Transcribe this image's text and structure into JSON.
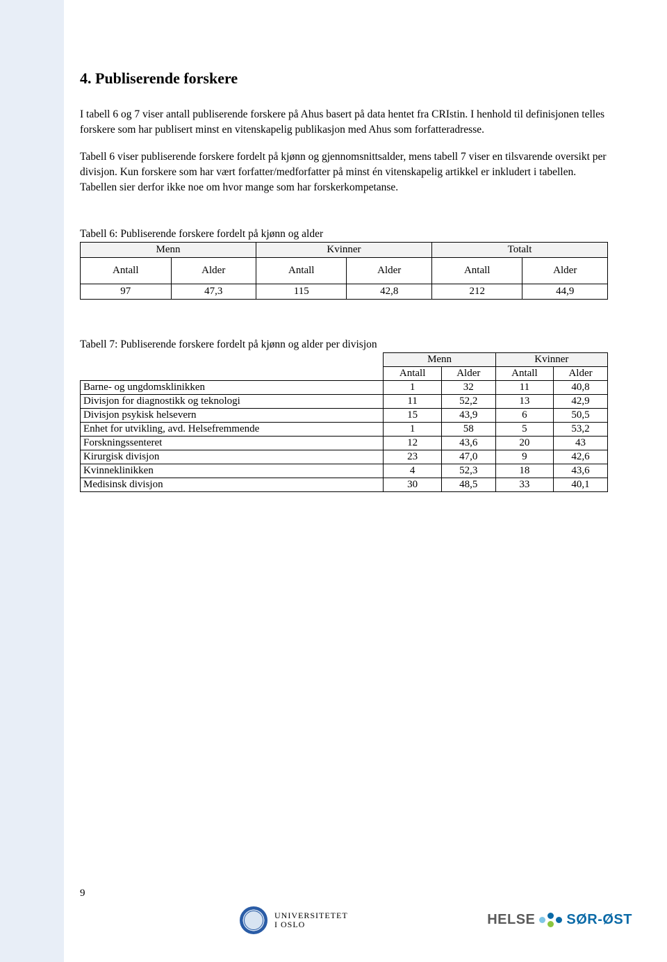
{
  "heading": "4. Publiserende forskere",
  "paragraphs": {
    "p1": "I tabell 6 og 7 viser antall publiserende forskere på Ahus basert på data hentet fra CRIstin. I henhold til definisjonen telles forskere som har publisert minst en vitenskapelig publikasjon med Ahus som forfatteradresse.",
    "p2": "Tabell 6 viser publiserende forskere fordelt på kjønn og gjennomsnittsalder, mens tabell 7 viser en tilsvarende oversikt per divisjon. Kun forskere som har vært forfatter/medforfatter på minst én vitenskapelig artikkel er inkludert i tabellen. Tabellen sier derfor ikke noe om hvor mange som har forskerkompetanse."
  },
  "table6": {
    "caption": "Tabell 6: Publiserende forskere fordelt på kjønn og alder",
    "group_headers": [
      "Menn",
      "Kvinner",
      "Totalt"
    ],
    "sub_headers": [
      "Antall",
      "Alder",
      "Antall",
      "Alder",
      "Antall",
      "Alder"
    ],
    "row": [
      "97",
      "47,3",
      "115",
      "42,8",
      "212",
      "44,9"
    ]
  },
  "table7": {
    "caption": "Tabell 7: Publiserende forskere fordelt på kjønn og alder per divisjon",
    "group_headers": [
      "Menn",
      "Kvinner"
    ],
    "sub_headers": [
      "Antall",
      "Alder",
      "Antall",
      "Alder"
    ],
    "rows": [
      {
        "label": "Barne- og ungdomsklinikken",
        "v": [
          "1",
          "32",
          "11",
          "40,8"
        ]
      },
      {
        "label": "Divisjon for diagnostikk og teknologi",
        "v": [
          "11",
          "52,2",
          "13",
          "42,9"
        ]
      },
      {
        "label": "Divisjon psykisk helsevern",
        "v": [
          "15",
          "43,9",
          "6",
          "50,5"
        ]
      },
      {
        "label": "Enhet for utvikling, avd. Helsefremmende",
        "v": [
          "1",
          "58",
          "5",
          "53,2"
        ]
      },
      {
        "label": "Forskningssenteret",
        "v": [
          "12",
          "43,6",
          "20",
          "43"
        ]
      },
      {
        "label": "Kirurgisk divisjon",
        "v": [
          "23",
          "47,0",
          "9",
          "42,6"
        ]
      },
      {
        "label": "Kvinneklinikken",
        "v": [
          "4",
          "52,3",
          "18",
          "43,6"
        ]
      },
      {
        "label": "Medisinsk divisjon",
        "v": [
          "30",
          "48,5",
          "33",
          "40,1"
        ]
      }
    ]
  },
  "page_number": "9",
  "footer": {
    "uio_line1": "UNIVERSITETET",
    "uio_line2": "I OSLO",
    "helse_left": "HELSE",
    "helse_right": "SØR-ØST",
    "dot_colors": {
      "a": "#7fc6e6",
      "b": "#0b6aa7",
      "c": "#8cc63f"
    }
  },
  "colors": {
    "left_band": "#e8eef7",
    "table_header_bg": "#f2f2f2"
  }
}
